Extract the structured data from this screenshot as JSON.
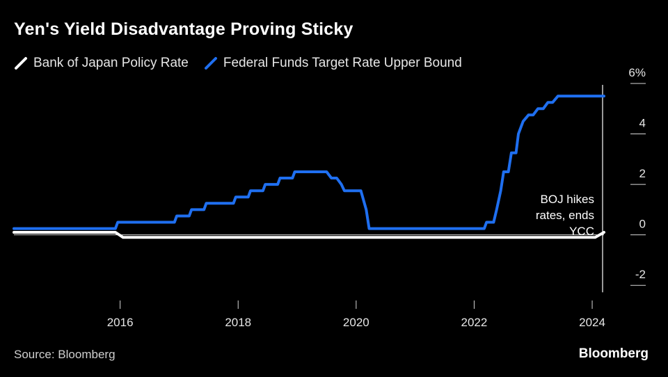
{
  "chart_data": {
    "type": "line",
    "title": "Yen's Yield Disadvantage Proving Sticky",
    "source": "Source: Bloomberg",
    "brand": "Bloomberg",
    "xlim": [
      2014.2,
      2024.2
    ],
    "ylim": [
      -2.6,
      6
    ],
    "x_ticks": [
      2016,
      2018,
      2020,
      2022,
      2024
    ],
    "y_ticks": [
      {
        "value": 6,
        "label": "6%"
      },
      {
        "value": 4,
        "label": "4"
      },
      {
        "value": 2,
        "label": "2"
      },
      {
        "value": 0,
        "label": "0"
      },
      {
        "value": -2,
        "label": "-2"
      }
    ],
    "zero_line": 0,
    "series": [
      {
        "name": "Bank of Japan Policy Rate",
        "color": "#ffffff",
        "points": [
          [
            2014.2,
            0.1
          ],
          [
            2015.92,
            0.1
          ],
          [
            2016.05,
            -0.1
          ],
          [
            2024.05,
            -0.1
          ],
          [
            2024.2,
            0.1
          ]
        ]
      },
      {
        "name": "Federal Funds Target Rate Upper Bound",
        "color": "#1f6ff0",
        "points": [
          [
            2014.2,
            0.25
          ],
          [
            2015.92,
            0.25
          ],
          [
            2015.96,
            0.5
          ],
          [
            2016.92,
            0.5
          ],
          [
            2016.96,
            0.75
          ],
          [
            2017.17,
            0.75
          ],
          [
            2017.21,
            1.0
          ],
          [
            2017.42,
            1.0
          ],
          [
            2017.46,
            1.25
          ],
          [
            2017.92,
            1.25
          ],
          [
            2017.96,
            1.5
          ],
          [
            2018.17,
            1.5
          ],
          [
            2018.21,
            1.75
          ],
          [
            2018.42,
            1.75
          ],
          [
            2018.46,
            2.0
          ],
          [
            2018.67,
            2.0
          ],
          [
            2018.71,
            2.25
          ],
          [
            2018.92,
            2.25
          ],
          [
            2018.96,
            2.5
          ],
          [
            2019.5,
            2.5
          ],
          [
            2019.58,
            2.25
          ],
          [
            2019.67,
            2.25
          ],
          [
            2019.75,
            2.0
          ],
          [
            2019.8,
            1.75
          ],
          [
            2020.08,
            1.75
          ],
          [
            2020.17,
            1.0
          ],
          [
            2020.22,
            0.25
          ],
          [
            2022.17,
            0.25
          ],
          [
            2022.21,
            0.5
          ],
          [
            2022.33,
            0.5
          ],
          [
            2022.38,
            1.0
          ],
          [
            2022.45,
            1.75
          ],
          [
            2022.5,
            2.5
          ],
          [
            2022.58,
            2.5
          ],
          [
            2022.63,
            3.25
          ],
          [
            2022.71,
            3.25
          ],
          [
            2022.75,
            4.0
          ],
          [
            2022.83,
            4.5
          ],
          [
            2022.92,
            4.75
          ],
          [
            2023.0,
            4.75
          ],
          [
            2023.08,
            5.0
          ],
          [
            2023.17,
            5.0
          ],
          [
            2023.25,
            5.25
          ],
          [
            2023.33,
            5.25
          ],
          [
            2023.42,
            5.5
          ],
          [
            2024.2,
            5.5
          ]
        ]
      }
    ],
    "annotations": [
      {
        "lines": [
          "BOJ hikes",
          "rates, ends",
          "YCC"
        ],
        "x": 2024.2,
        "y_top": 6,
        "y_bottom": -2
      }
    ]
  }
}
